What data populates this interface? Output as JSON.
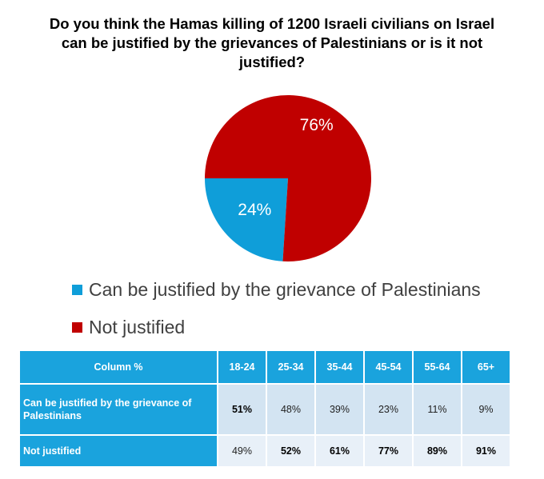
{
  "chart_data": {
    "type": "pie",
    "title": "Do you think the Hamas killing of 1200 Israeli civilians on Israel can be justified by the grievances of Palestinians or is it not justified?",
    "slices": [
      {
        "name": "Can be justified by the grievance of Palestinians",
        "value": 24,
        "label": "24%",
        "color": "#0f9ed9"
      },
      {
        "name": "Not justified",
        "value": 76,
        "label": "76%",
        "color": "#c00000"
      }
    ],
    "legend_position": "bottom-left"
  },
  "table": {
    "header": [
      "Column %",
      "18-24",
      "25-34",
      "35-44",
      "45-54",
      "55-64",
      "65+"
    ],
    "rows": [
      {
        "label": "Can be justified by the grievance of Palestinians",
        "cells": [
          {
            "text": "51%",
            "bold": true
          },
          {
            "text": "48%",
            "bold": false
          },
          {
            "text": "39%",
            "bold": false
          },
          {
            "text": "23%",
            "bold": false
          },
          {
            "text": "11%",
            "bold": false
          },
          {
            "text": "9%",
            "bold": false
          }
        ]
      },
      {
        "label": "Not justified",
        "cells": [
          {
            "text": "49%",
            "bold": false
          },
          {
            "text": "52%",
            "bold": true
          },
          {
            "text": "61%",
            "bold": true
          },
          {
            "text": "77%",
            "bold": true
          },
          {
            "text": "89%",
            "bold": true
          },
          {
            "text": "91%",
            "bold": true
          }
        ]
      }
    ]
  }
}
